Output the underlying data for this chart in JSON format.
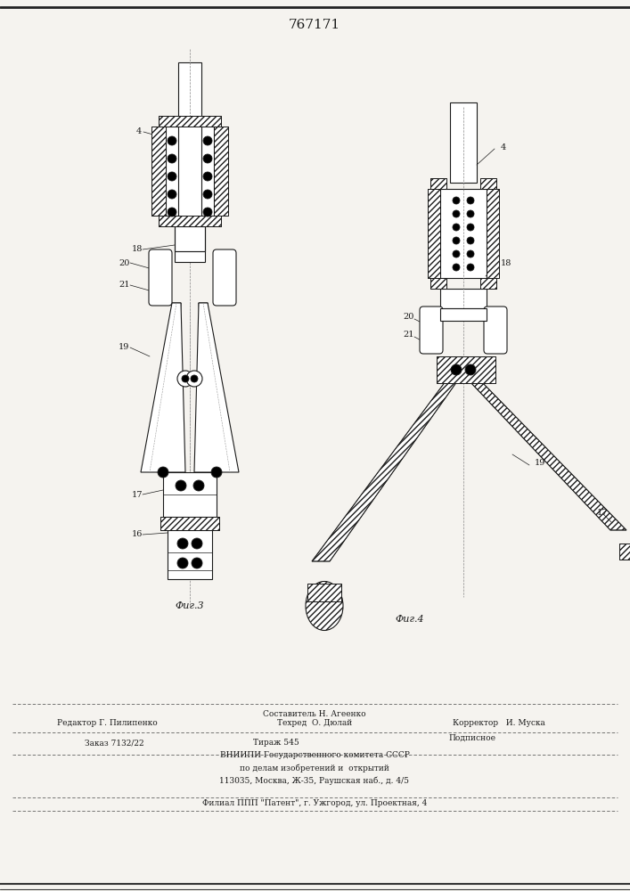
{
  "title": "767171",
  "bg_color": "#f5f3ef",
  "fig3_label": "Фиг.3",
  "fig4_label": "Фиг.4",
  "footer": {
    "line1a": "Составитель Н. Агеенко",
    "line1b": "Корректор   И. Муска",
    "line2a": "Редактор Г. Пилипенко",
    "line2b": "Техред  О. Дюлай",
    "line3a": "Заказ 7132/22",
    "line3b": "Тираж 545",
    "line3c": "Подписное",
    "line4": "ВНИИПИ Государственного комитета СССР",
    "line5": "по делам изобретений и  открытий",
    "line6": "113035, Москва, Ж-35, Раушская наб., д. 4/5",
    "line7": "Филиал ППП \"Патент\", г. Ужгород, ул. Проектная, 4"
  }
}
